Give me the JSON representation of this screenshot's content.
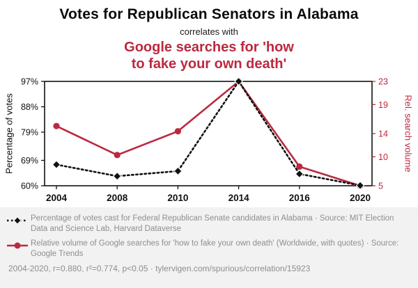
{
  "header": {
    "title": "Votes for Republican Senators in Alabama",
    "subtitle": "correlates with",
    "secondary_title": "Google searches for 'how to fake your own death'"
  },
  "colors": {
    "accent_red": "#bb2940",
    "ink": "#111111",
    "legend_gray": "#8e8e8e",
    "panel_gray": "#f2f2f2"
  },
  "chart_data": {
    "type": "line",
    "x": [
      "2004",
      "2008",
      "2010",
      "2014",
      "2016",
      "2020"
    ],
    "series": [
      {
        "name": "Percentage of votes cast for Federal Republican Senate candidates in Alabama",
        "axis": "left",
        "color": "#111111",
        "marker": "diamond",
        "line_style": "dotted",
        "values": [
          67.5,
          63.4,
          65.2,
          97.3,
          64.2,
          60.1
        ]
      },
      {
        "name": "Relative volume of Google searches for 'how to fake your own death'",
        "axis": "right",
        "color": "#bb2940",
        "marker": "circle",
        "line_style": "solid",
        "values": [
          15.3,
          10.3,
          14.4,
          23,
          8.3,
          5
        ]
      }
    ],
    "left_axis": {
      "label": "Percentage of votes",
      "ticks": [
        "60%",
        "69%",
        "79%",
        "88%",
        "97%"
      ],
      "tick_values": [
        60,
        69,
        79,
        88,
        97
      ],
      "range": [
        60,
        97
      ]
    },
    "right_axis": {
      "label": "Rel. search volume",
      "ticks": [
        "5",
        "10",
        "14",
        "19",
        "23"
      ],
      "tick_values": [
        5,
        10,
        14,
        19,
        23
      ],
      "range": [
        5,
        23
      ]
    },
    "grid": false,
    "legend_position": "bottom"
  },
  "legend": {
    "items": [
      {
        "marker": "black-diamond-dotted",
        "label": "Percentage of votes cast for Federal Republican Senate candidates in Alabama · Source: MIT Election Data and Science Lab, Harvard Dataverse"
      },
      {
        "marker": "red-circle-solid",
        "label": "Relative volume of Google searches for 'how to fake your own death' (Worldwide, with quotes) · Source: Google Trends"
      }
    ]
  },
  "footer": {
    "text": "2004-2020, r=0.880, r²=0.774, p<0.05 · tylervigen.com/spurious/correlation/15923"
  }
}
